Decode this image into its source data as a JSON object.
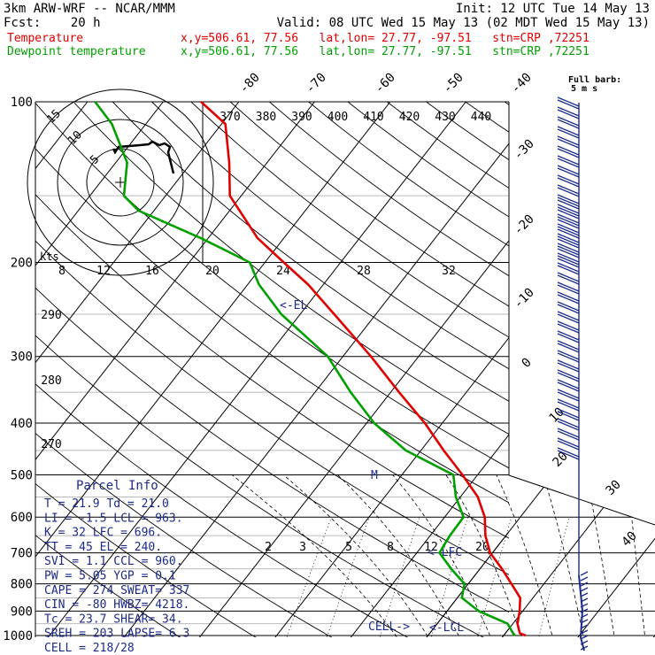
{
  "header": {
    "model": "3km ARW-WRF -- NCAR/MMM",
    "init": "Init: 12 UTC Tue 14 May 13",
    "fcst": "Fcst:    20 h",
    "valid": "Valid: 08 UTC Wed 15 May 13 (02 MDT Wed 15 May 13)"
  },
  "legend": [
    {
      "name": "Temperature",
      "info": "x,y=506.61, 77.56   lat,lon= 27.77, -97.51   stn=CRP ,72251",
      "color": "#e00000"
    },
    {
      "name": "Dewpoint temperature",
      "info": "x,y=506.61, 77.56   lat,lon= 27.77, -97.51   stn=CRP ,72251",
      "color": "#00a000"
    }
  ],
  "barb_note": {
    "line1": "Full barb:",
    "line2": "5 m s"
  },
  "pressure_labels": [
    "100",
    "200",
    "300",
    "400",
    "500",
    "600",
    "700",
    "800",
    "900",
    "1000"
  ],
  "temperature_labels": [
    "-80",
    "-70",
    "-60",
    "-50",
    "-40",
    "-30",
    "-20",
    "-10",
    "0",
    "10",
    "20",
    "30",
    "40"
  ],
  "theta_labels": [
    "370",
    "380",
    "390",
    "400",
    "410",
    "420",
    "430",
    "440"
  ],
  "theta_left_labels": [
    "290",
    "280",
    "270"
  ],
  "mixing_ratio_labels": [
    "2",
    "3",
    "5",
    "8",
    "12",
    "20"
  ],
  "hodograph": {
    "unit": "kts",
    "ring_labels": [
      "5",
      "10",
      "15"
    ],
    "axis_labels": [
      "8",
      "12",
      "16",
      "20",
      "24",
      "28",
      "32"
    ]
  },
  "levels": {
    "el": "<-EL",
    "m": "M",
    "lfc": "<-LFC",
    "lcl": "<-LCL",
    "cell": "CELL->"
  },
  "parcel_info": {
    "title": "Parcel Info",
    "rows": [
      "T  =   21.9  Td =  21.0",
      "LI =   -1.5  LCL =  963.",
      "K  =     32  LFC = 696.",
      "TT =     45  EL  =  240.",
      "SVI =   1.1  CCL =  960.",
      "PW =   5.05  YGP =   0.1",
      "CAPE =  274  SWEAT=  337",
      "CIN =   -80  HWBZ= 4218.",
      "Tc =   23.7  SHEAR=  34.",
      "SREH =  203  LAPSE=  6.3",
      "CELL = 218/28"
    ]
  },
  "colors": {
    "temperature": "#e00000",
    "dewpoint": "#00a000",
    "label": "#1c2a8c",
    "grid": "#000000",
    "wind": "#1c2a8c"
  },
  "chart_data": {
    "type": "line",
    "title": "",
    "xlabel": "",
    "ylabel": "",
    "ylim": [
      1000,
      100
    ],
    "xlim": [
      -40,
      40
    ],
    "log_pressure": true,
    "series": [
      {
        "name": "Temperature",
        "color": "#e00000",
        "points": [
          [
            1000,
            22.9
          ],
          [
            990,
            21.9
          ],
          [
            950,
            20.6
          ],
          [
            900,
            19.6
          ],
          [
            850,
            18.3
          ],
          [
            800,
            15.7
          ],
          [
            750,
            12.9
          ],
          [
            700,
            9.7
          ],
          [
            650,
            7.3
          ],
          [
            600,
            5.3
          ],
          [
            550,
            2.3
          ],
          [
            500,
            -2.0
          ],
          [
            450,
            -7.0
          ],
          [
            400,
            -12.3
          ],
          [
            350,
            -18.9
          ],
          [
            300,
            -26.3
          ],
          [
            250,
            -35.5
          ],
          [
            220,
            -42.0
          ],
          [
            200,
            -47.5
          ],
          [
            180,
            -53.5
          ],
          [
            150,
            -61.5
          ],
          [
            130,
            -65.0
          ],
          [
            110,
            -69.5
          ],
          [
            100,
            -75.0
          ]
        ]
      },
      {
        "name": "Dewpoint temperature",
        "color": "#00a000",
        "points": [
          [
            1000,
            21.5
          ],
          [
            990,
            21.0
          ],
          [
            950,
            19.3
          ],
          [
            900,
            14.2
          ],
          [
            850,
            10.6
          ],
          [
            800,
            9.5
          ],
          [
            750,
            6.2
          ],
          [
            700,
            3.0
          ],
          [
            650,
            2.6
          ],
          [
            600,
            2.5
          ],
          [
            550,
            -0.6
          ],
          [
            500,
            -3.2
          ],
          [
            450,
            -12.0
          ],
          [
            400,
            -19.0
          ],
          [
            350,
            -25.3
          ],
          [
            300,
            -32.0
          ],
          [
            250,
            -42.5
          ],
          [
            220,
            -48.5
          ],
          [
            200,
            -52.0
          ],
          [
            180,
            -61.0
          ],
          [
            160,
            -72.0
          ],
          [
            150,
            -75.5
          ],
          [
            130,
            -78.5
          ],
          [
            110,
            -84.5
          ],
          [
            100,
            -89.0
          ]
        ]
      }
    ]
  }
}
